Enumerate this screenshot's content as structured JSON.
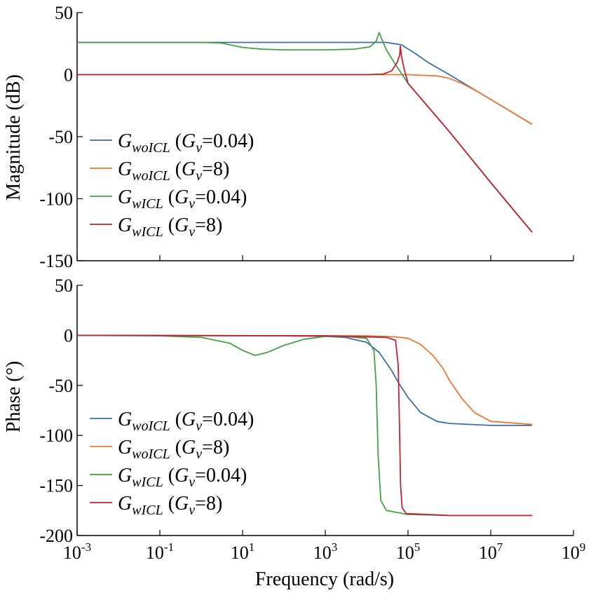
{
  "chart_data": [
    {
      "type": "line",
      "panel": "magnitude",
      "ylabel": "Magnitude (dB)",
      "xlabel": "",
      "xscale": "log",
      "xlim": [
        0.001,
        1000000000
      ],
      "ylim": [
        -150,
        50
      ],
      "yticks": [
        50,
        0,
        -50,
        -100,
        -150
      ],
      "grid": false,
      "legend_position": "left",
      "series": [
        {
          "name": "G_woICL (G_v=0.04)",
          "legend": {
            "main": "G",
            "sub": "woICL",
            "paren_main": "G",
            "paren_sub": "v",
            "paren_rest": "=0.04)"
          },
          "color": "#3c6fa8",
          "points": [
            [
              0.001,
              26
            ],
            [
              1,
              26
            ],
            [
              100,
              26
            ],
            [
              1000,
              26
            ],
            [
              10000,
              26
            ],
            [
              30000,
              26
            ],
            [
              70000,
              24
            ],
            [
              150000,
              17
            ],
            [
              300000,
              10
            ],
            [
              1000000,
              0
            ],
            [
              10000000,
              -20
            ],
            [
              100000000,
              -40
            ]
          ]
        },
        {
          "name": "G_woICL (G_v=8)",
          "legend": {
            "main": "G",
            "sub": "woICL",
            "paren_main": "G",
            "paren_sub": "v",
            "paren_rest": "=8)"
          },
          "color": "#e4793b",
          "points": [
            [
              0.001,
              0
            ],
            [
              100,
              0
            ],
            [
              100000,
              0
            ],
            [
              500000,
              -1
            ],
            [
              1000000,
              -3
            ],
            [
              2000000,
              -7
            ],
            [
              5000000,
              -14
            ],
            [
              10000000,
              -20
            ],
            [
              100000000,
              -40
            ]
          ]
        },
        {
          "name": "G_wICL (G_v=0.04)",
          "legend": {
            "main": "G",
            "sub": "wICL",
            "paren_main": "G",
            "paren_sub": "v",
            "paren_rest": "=0.04)"
          },
          "color": "#46a046",
          "points": [
            [
              0.001,
              26
            ],
            [
              1,
              26
            ],
            [
              3,
              25.5
            ],
            [
              10,
              22
            ],
            [
              30,
              20.5
            ],
            [
              100,
              20
            ],
            [
              1000,
              20
            ],
            [
              5000,
              20.5
            ],
            [
              12000,
              22.5
            ],
            [
              17000,
              27
            ],
            [
              20000,
              34
            ],
            [
              23000,
              29
            ],
            [
              30000,
              20
            ],
            [
              50000,
              8
            ],
            [
              100000,
              -7
            ],
            [
              1000000,
              -46
            ],
            [
              10000000,
              -87
            ],
            [
              100000000,
              -127
            ]
          ]
        },
        {
          "name": "G_wICL (G_v=8)",
          "legend": {
            "main": "G",
            "sub": "wICL",
            "paren_main": "G",
            "paren_sub": "v",
            "paren_rest": "=8)"
          },
          "color": "#bc2535",
          "points": [
            [
              0.001,
              0
            ],
            [
              10000,
              0
            ],
            [
              25000,
              0.5
            ],
            [
              40000,
              3
            ],
            [
              55000,
              10
            ],
            [
              63000,
              16
            ],
            [
              65000,
              23
            ],
            [
              70000,
              14
            ],
            [
              80000,
              5
            ],
            [
              100000,
              -7
            ],
            [
              1000000,
              -46
            ],
            [
              10000000,
              -87
            ],
            [
              100000000,
              -127
            ]
          ]
        }
      ]
    },
    {
      "type": "line",
      "panel": "phase",
      "ylabel": "Phase (°)",
      "xlabel": "Frequency (rad/s)",
      "xscale": "log",
      "xlim": [
        0.001,
        1000000000
      ],
      "ylim": [
        -200,
        50
      ],
      "yticks": [
        50,
        0,
        -50,
        -100,
        -150,
        -200
      ],
      "xticks": [
        {
          "value": 0.001,
          "base": "10",
          "exp": "-3"
        },
        {
          "value": 0.1,
          "base": "10",
          "exp": "-1"
        },
        {
          "value": 10,
          "base": "10",
          "exp": "1"
        },
        {
          "value": 1000,
          "base": "10",
          "exp": "3"
        },
        {
          "value": 100000,
          "base": "10",
          "exp": "5"
        },
        {
          "value": 10000000,
          "base": "10",
          "exp": "7"
        },
        {
          "value": 1000000000,
          "base": "10",
          "exp": "9"
        }
      ],
      "grid": false,
      "legend_position": "left",
      "series": [
        {
          "name": "G_woICL (G_v=0.04)",
          "legend": {
            "main": "G",
            "sub": "woICL",
            "paren_main": "G",
            "paren_sub": "v",
            "paren_rest": "=0.04)"
          },
          "color": "#3c6fa8",
          "points": [
            [
              0.001,
              0
            ],
            [
              100,
              -0.5
            ],
            [
              1000,
              -1
            ],
            [
              3000,
              -2
            ],
            [
              10000,
              -7
            ],
            [
              20000,
              -17
            ],
            [
              40000,
              -35
            ],
            [
              60000,
              -48
            ],
            [
              100000,
              -62
            ],
            [
              200000,
              -77
            ],
            [
              500000,
              -86
            ],
            [
              1000000,
              -88
            ],
            [
              10000000,
              -90
            ],
            [
              100000000,
              -90
            ]
          ]
        },
        {
          "name": "G_woICL (G_v=8)",
          "legend": {
            "main": "G",
            "sub": "woICL",
            "paren_main": "G",
            "paren_sub": "v",
            "paren_rest": "=8)"
          },
          "color": "#e4793b",
          "points": [
            [
              0.001,
              0
            ],
            [
              10000,
              -0.5
            ],
            [
              50000,
              -1.5
            ],
            [
              100000,
              -3
            ],
            [
              200000,
              -9
            ],
            [
              400000,
              -20
            ],
            [
              700000,
              -33
            ],
            [
              1000000,
              -45
            ],
            [
              2000000,
              -63
            ],
            [
              4000000,
              -77
            ],
            [
              10000000,
              -86
            ],
            [
              100000000,
              -89
            ]
          ]
        },
        {
          "name": "G_wICL (G_v=0.04)",
          "legend": {
            "main": "G",
            "sub": "wICL",
            "paren_main": "G",
            "paren_sub": "v",
            "paren_rest": "=0.04)"
          },
          "color": "#46a046",
          "points": [
            [
              0.001,
              0
            ],
            [
              0.1,
              -0.5
            ],
            [
              1,
              -2
            ],
            [
              5,
              -8
            ],
            [
              10,
              -15
            ],
            [
              20,
              -20
            ],
            [
              40,
              -17
            ],
            [
              100,
              -10
            ],
            [
              300,
              -4
            ],
            [
              1000,
              -1
            ],
            [
              3000,
              -1
            ],
            [
              10000,
              -3
            ],
            [
              15000,
              -15
            ],
            [
              17000,
              -50
            ],
            [
              19000,
              -120
            ],
            [
              22000,
              -165
            ],
            [
              30000,
              -175
            ],
            [
              100000,
              -179
            ],
            [
              1000000,
              -180
            ],
            [
              100000000,
              -180
            ]
          ]
        },
        {
          "name": "G_wICL (G_v=8)",
          "legend": {
            "main": "G",
            "sub": "wICL",
            "paren_main": "G",
            "paren_sub": "v",
            "paren_rest": "=8)"
          },
          "color": "#bc2535",
          "points": [
            [
              0.001,
              0
            ],
            [
              1000,
              -0.5
            ],
            [
              30000,
              -2
            ],
            [
              50000,
              -5
            ],
            [
              58000,
              -30
            ],
            [
              62000,
              -90
            ],
            [
              66000,
              -150
            ],
            [
              72000,
              -172
            ],
            [
              90000,
              -178
            ],
            [
              1000000,
              -180
            ],
            [
              100000000,
              -180
            ]
          ]
        }
      ]
    }
  ]
}
